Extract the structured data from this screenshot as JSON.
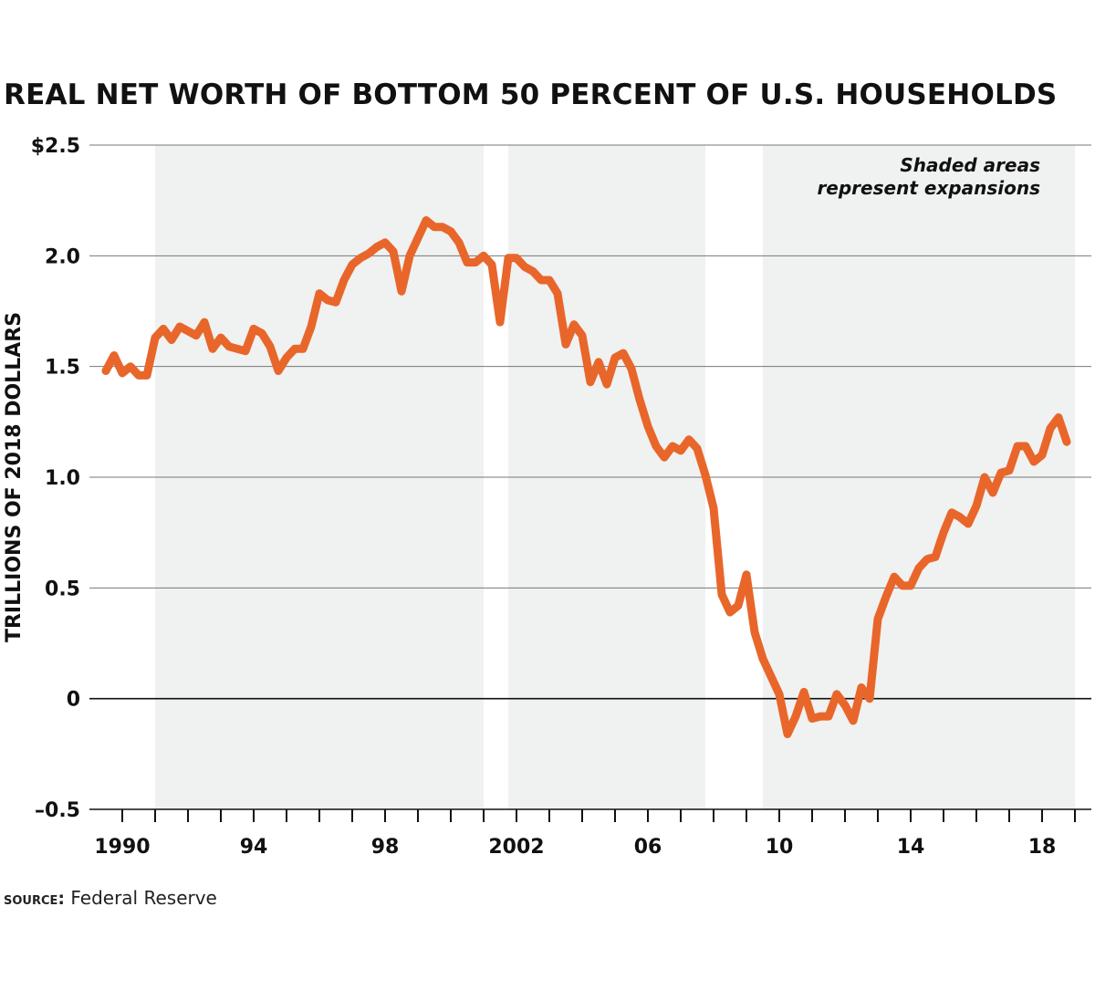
{
  "chart_data": {
    "type": "line",
    "title": "REAL NET WORTH OF BOTTOM 50 PERCENT OF U.S. HOUSEHOLDS",
    "ylabel": "TRILLIONS OF 2018 DOLLARS",
    "xlabel": "",
    "ylim": [
      -0.5,
      2.5
    ],
    "xlim": [
      1989.0,
      2019.5
    ],
    "grid": true,
    "yticks": [
      {
        "value": 2.5,
        "label": "$2.5"
      },
      {
        "value": 2.0,
        "label": "2.0"
      },
      {
        "value": 1.5,
        "label": "1.5"
      },
      {
        "value": 1.0,
        "label": "1.0"
      },
      {
        "value": 0.5,
        "label": "0.5"
      },
      {
        "value": 0,
        "label": "0"
      },
      {
        "value": -0.5,
        "label": "–0.5"
      }
    ],
    "xticks": [
      {
        "value": 1990,
        "label": "1990"
      },
      {
        "value": 1994,
        "label": "94"
      },
      {
        "value": 1998,
        "label": "98"
      },
      {
        "value": 2002,
        "label": "2002"
      },
      {
        "value": 2006,
        "label": "06"
      },
      {
        "value": 2010,
        "label": "10"
      },
      {
        "value": 2014,
        "label": "14"
      },
      {
        "value": 2018,
        "label": "18"
      }
    ],
    "shaded_periods": [
      {
        "start": 1991.0,
        "end": 2001.0
      },
      {
        "start": 2001.75,
        "end": 2007.75
      },
      {
        "start": 2009.5,
        "end": 2019.0
      }
    ],
    "annotation": {
      "lines": [
        "Shaded areas",
        "represent expansions"
      ]
    },
    "series": [
      {
        "color": "#e8662a",
        "x": [
          1989.5,
          1989.75,
          1990.0,
          1990.25,
          1990.5,
          1990.75,
          1991.0,
          1991.25,
          1991.5,
          1991.75,
          1992.0,
          1992.25,
          1992.5,
          1992.75,
          1993.0,
          1993.25,
          1993.5,
          1993.75,
          1994.0,
          1994.25,
          1994.5,
          1994.75,
          1995.0,
          1995.25,
          1995.5,
          1995.75,
          1996.0,
          1996.25,
          1996.5,
          1996.75,
          1997.0,
          1997.25,
          1997.5,
          1997.75,
          1998.0,
          1998.25,
          1998.5,
          1998.75,
          1999.0,
          1999.25,
          1999.5,
          1999.75,
          2000.0,
          2000.25,
          2000.5,
          2000.75,
          2001.0,
          2001.25,
          2001.5,
          2001.75,
          2002.0,
          2002.25,
          2002.5,
          2002.75,
          2003.0,
          2003.25,
          2003.5,
          2003.75,
          2004.0,
          2004.25,
          2004.5,
          2004.75,
          2005.0,
          2005.25,
          2005.5,
          2005.75,
          2006.0,
          2006.25,
          2006.5,
          2006.75,
          2007.0,
          2007.25,
          2007.5,
          2007.75,
          2008.0,
          2008.25,
          2008.5,
          2008.75,
          2009.0,
          2009.25,
          2009.5,
          2009.75,
          2010.0,
          2010.25,
          2010.5,
          2010.75,
          2011.0,
          2011.25,
          2011.5,
          2011.75,
          2012.0,
          2012.25,
          2012.5,
          2012.75,
          2013.0,
          2013.25,
          2013.5,
          2013.75,
          2014.0,
          2014.25,
          2014.5,
          2014.75,
          2015.0,
          2015.25,
          2015.5,
          2015.75,
          2016.0,
          2016.25,
          2016.5,
          2016.75,
          2017.0,
          2017.25,
          2017.5,
          2017.75,
          2018.0,
          2018.25,
          2018.5,
          2018.75
        ],
        "values": [
          1.48,
          1.55,
          1.47,
          1.5,
          1.46,
          1.46,
          1.63,
          1.67,
          1.62,
          1.68,
          1.66,
          1.64,
          1.7,
          1.58,
          1.63,
          1.59,
          1.58,
          1.57,
          1.67,
          1.65,
          1.59,
          1.48,
          1.54,
          1.58,
          1.58,
          1.68,
          1.83,
          1.8,
          1.79,
          1.89,
          1.96,
          1.99,
          2.01,
          2.04,
          2.06,
          2.02,
          1.84,
          2.0,
          2.08,
          2.16,
          2.13,
          2.13,
          2.11,
          2.06,
          1.97,
          1.97,
          2.0,
          1.96,
          1.7,
          1.99,
          1.99,
          1.95,
          1.93,
          1.89,
          1.89,
          1.83,
          1.6,
          1.69,
          1.64,
          1.43,
          1.52,
          1.42,
          1.54,
          1.56,
          1.49,
          1.35,
          1.23,
          1.14,
          1.09,
          1.14,
          1.12,
          1.17,
          1.13,
          1.01,
          0.86,
          0.47,
          0.39,
          0.42,
          0.56,
          0.3,
          0.18,
          0.1,
          0.02,
          -0.16,
          -0.08,
          0.03,
          -0.09,
          -0.08,
          -0.08,
          0.02,
          -0.03,
          -0.1,
          0.05,
          0.0,
          0.36,
          0.46,
          0.55,
          0.51,
          0.51,
          0.59,
          0.63,
          0.64,
          0.75,
          0.84,
          0.82,
          0.79,
          0.87,
          1.0,
          0.93,
          1.02,
          1.03,
          1.14,
          1.14,
          1.07,
          1.1,
          1.22,
          1.27,
          1.16
        ]
      }
    ]
  },
  "source": {
    "label": "SOURCE:",
    "text": "Federal Reserve"
  }
}
